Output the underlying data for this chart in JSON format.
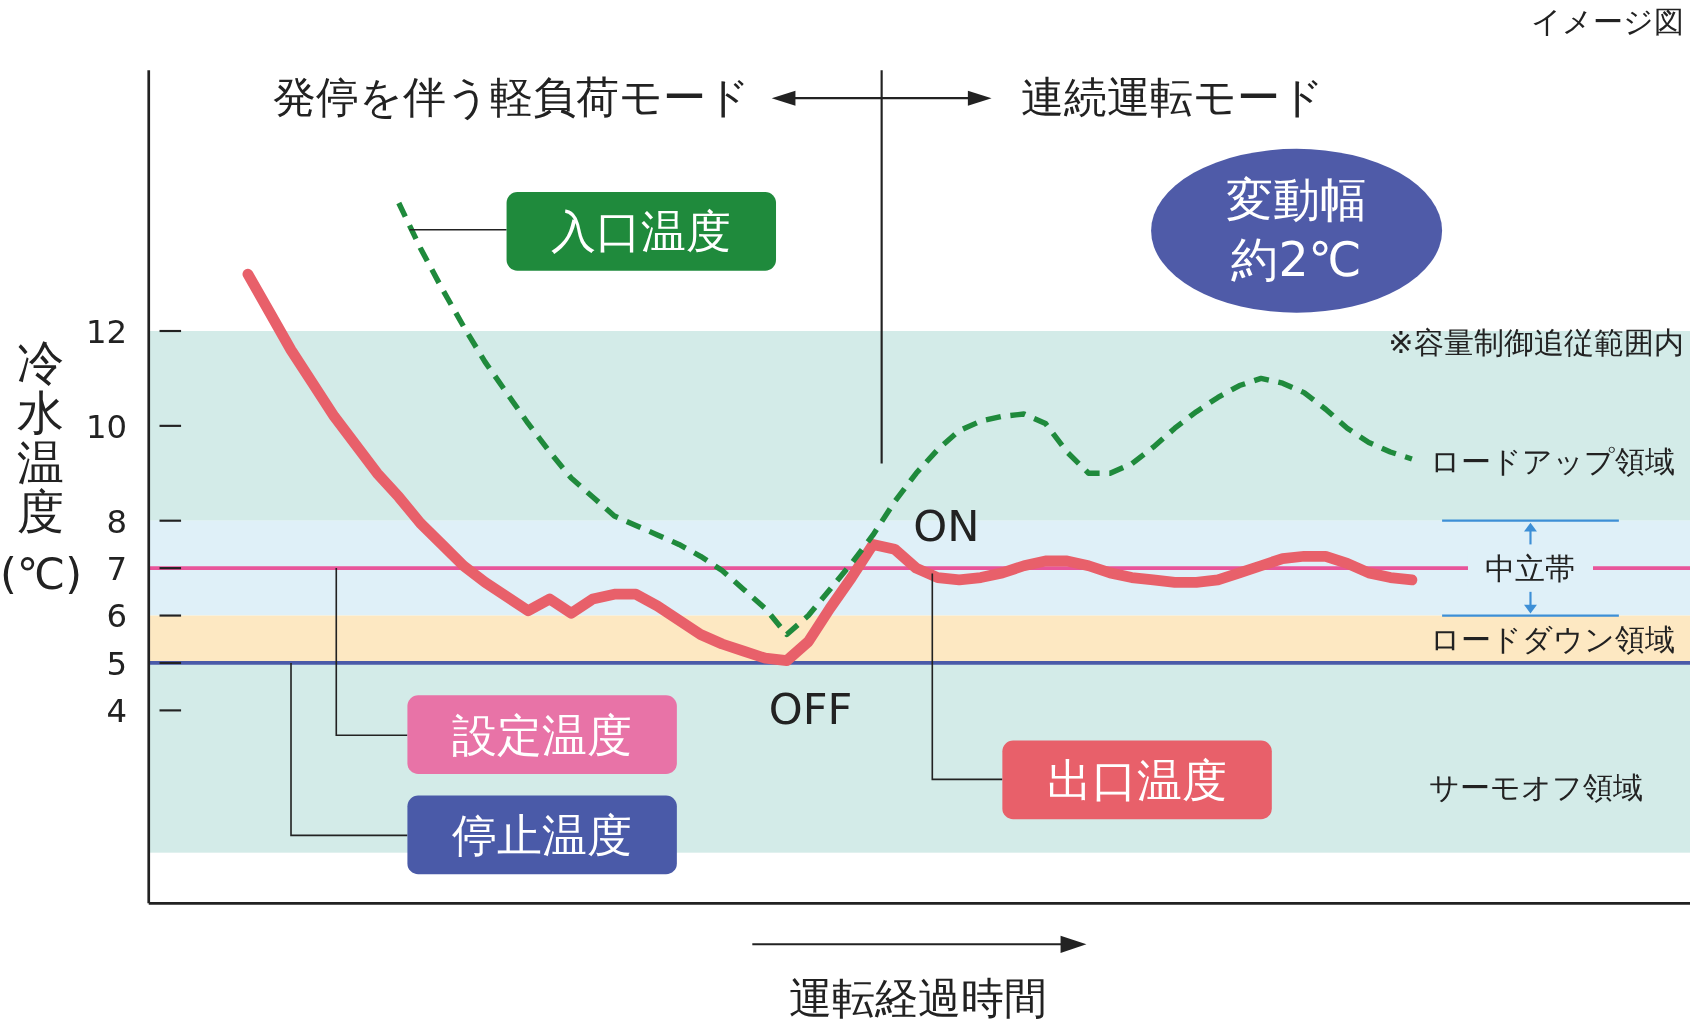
{
  "chart_data": {
    "type": "line",
    "xlabel": "運転経過時間",
    "ylabel": "冷水温度(℃)",
    "categories": [
      null,
      null,
      null,
      null,
      null,
      null,
      null,
      null,
      null,
      null,
      null,
      null,
      null,
      null,
      null,
      null,
      null,
      null,
      null,
      null,
      null,
      null,
      null,
      null,
      null,
      null,
      null,
      null,
      null,
      null,
      null,
      null,
      null,
      null,
      null,
      null,
      null,
      null,
      null,
      null,
      null,
      null,
      null,
      null,
      null,
      null,
      null,
      null,
      null,
      null,
      null,
      null,
      null,
      null,
      null
    ],
    "series": [
      {
        "name": "出口温度",
        "color": "#e8606a",
        "line_style": "solid",
        "values": [
          13.2,
          12.4,
          11.6,
          10.9,
          10.2,
          9.6,
          9.0,
          8.5,
          7.95,
          7.5,
          7.05,
          6.7,
          6.4,
          6.1,
          6.35,
          6.05,
          6.35,
          6.45,
          6.45,
          6.2,
          5.9,
          5.6,
          5.4,
          5.25,
          5.1,
          5.05,
          5.45,
          6.15,
          6.8,
          7.5,
          7.4,
          7.0,
          6.8,
          6.75,
          6.8,
          6.9,
          7.05,
          7.15,
          7.15,
          7.05,
          6.9,
          6.8,
          6.75,
          6.7,
          6.7,
          6.75,
          6.9,
          7.05,
          7.2,
          7.25,
          7.25,
          7.1,
          6.9,
          6.8,
          6.75
        ]
      },
      {
        "name": "入口温度",
        "color": "#1f8a3c",
        "line_style": "dashed",
        "values": [
          null,
          null,
          null,
          null,
          null,
          null,
          null,
          14.7,
          13.75,
          12.9,
          12.1,
          11.35,
          10.7,
          10.05,
          9.45,
          8.9,
          8.5,
          8.1,
          7.9,
          7.7,
          7.5,
          7.25,
          6.95,
          6.55,
          6.15,
          5.6,
          6.0,
          6.55,
          7.1,
          7.7,
          8.4,
          9.0,
          9.5,
          9.9,
          10.1,
          10.2,
          10.25,
          10.05,
          9.45,
          9.0,
          9.0,
          9.2,
          9.55,
          9.95,
          10.3,
          10.6,
          10.85,
          11.0,
          10.9,
          10.7,
          10.35,
          9.95,
          9.65,
          9.45,
          9.3
        ]
      }
    ],
    "ylim": [
      0,
      17.5
    ],
    "yticks": [
      4,
      5,
      6,
      7,
      8,
      10,
      12
    ],
    "tick_labels": "y",
    "grid": false,
    "legend": false,
    "marker": "none",
    "ref_lines": [
      {
        "axis": "y",
        "value": 7,
        "label": "設定温度",
        "color": "#e8559a"
      },
      {
        "axis": "y",
        "value": 5,
        "label": "停止温度",
        "color": "#4a5aa8"
      }
    ],
    "bands": [
      {
        "axis": "y",
        "from": 8,
        "to": 12,
        "label": "ロードアップ領域",
        "color": "#d3ebe8"
      },
      {
        "axis": "y",
        "from": 6,
        "to": 8,
        "label": "中立帯",
        "color": "#dff0f8"
      },
      {
        "axis": "y",
        "from": 5,
        "to": 6,
        "label": "ロードダウン領域",
        "color": "#fde8c2"
      },
      {
        "axis": "y",
        "from": 1,
        "to": 5,
        "label": "サーモオフ領域",
        "color": "#d3ebe8"
      }
    ],
    "annotations": [
      "イメージ図",
      "発停を伴う軽負荷モード",
      "連続運転モード",
      "変動幅",
      "約2℃",
      "※容量制御追従範囲内",
      "ON",
      "OFF"
    ]
  }
}
